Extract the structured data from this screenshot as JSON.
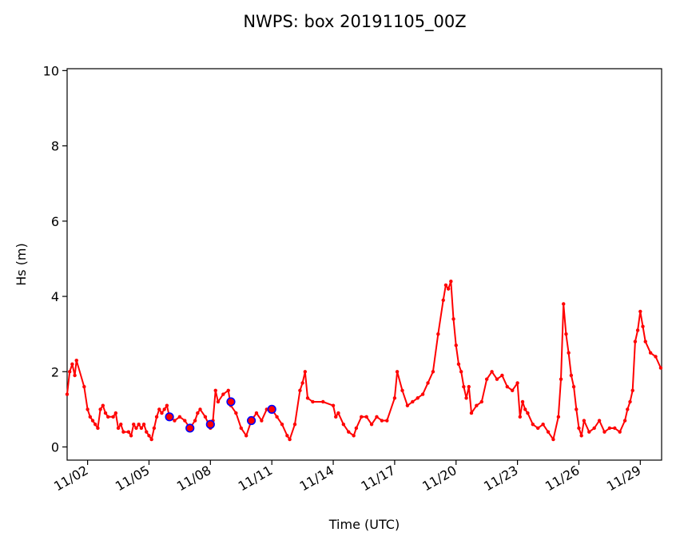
{
  "chart_data": {
    "type": "line",
    "title": "NWPS: box 20191105_00Z",
    "xlabel": "Time (UTC)",
    "ylabel": "Hs (m)",
    "xlim": [
      "2019-11-01",
      "2019-11-30T01:00"
    ],
    "ylim": [
      -0.35,
      10.05
    ],
    "x_ticks": [
      {
        "x": "2019-11-02",
        "label": "11/02"
      },
      {
        "x": "2019-11-05",
        "label": "11/05"
      },
      {
        "x": "2019-11-08",
        "label": "11/08"
      },
      {
        "x": "2019-11-11",
        "label": "11/11"
      },
      {
        "x": "2019-11-14",
        "label": "11/14"
      },
      {
        "x": "2019-11-17",
        "label": "11/17"
      },
      {
        "x": "2019-11-20",
        "label": "11/20"
      },
      {
        "x": "2019-11-23",
        "label": "11/23"
      },
      {
        "x": "2019-11-26",
        "label": "11/26"
      },
      {
        "x": "2019-11-29",
        "label": "11/29"
      }
    ],
    "y_ticks": [
      0,
      2,
      4,
      6,
      8,
      10
    ],
    "series": [
      {
        "kind": "observed",
        "color": "#ff0000",
        "points": [
          [
            "2019-11-01T00:00",
            1.4
          ],
          [
            "2019-11-01T03:00",
            2.0
          ],
          [
            "2019-11-01T06:00",
            2.2
          ],
          [
            "2019-11-01T09:00",
            1.9
          ],
          [
            "2019-11-01T11:00",
            2.3
          ],
          [
            "2019-11-01T20:00",
            1.6
          ],
          [
            "2019-11-02T00:00",
            1.0
          ],
          [
            "2019-11-02T03:00",
            0.8
          ],
          [
            "2019-11-02T06:00",
            0.7
          ],
          [
            "2019-11-02T09:00",
            0.6
          ],
          [
            "2019-11-02T12:00",
            0.5
          ],
          [
            "2019-11-02T15:00",
            1.0
          ],
          [
            "2019-11-02T18:00",
            1.1
          ],
          [
            "2019-11-02T21:00",
            0.9
          ],
          [
            "2019-11-03T00:00",
            0.8
          ],
          [
            "2019-11-03T06:00",
            0.8
          ],
          [
            "2019-11-03T09:00",
            0.9
          ],
          [
            "2019-11-03T12:00",
            0.5
          ],
          [
            "2019-11-03T15:00",
            0.6
          ],
          [
            "2019-11-03T18:00",
            0.4
          ],
          [
            "2019-11-04T00:00",
            0.4
          ],
          [
            "2019-11-04T03:00",
            0.3
          ],
          [
            "2019-11-04T06:00",
            0.6
          ],
          [
            "2019-11-04T09:00",
            0.5
          ],
          [
            "2019-11-04T12:00",
            0.6
          ],
          [
            "2019-11-04T15:00",
            0.5
          ],
          [
            "2019-11-04T18:00",
            0.6
          ],
          [
            "2019-11-04T21:00",
            0.4
          ],
          [
            "2019-11-05T00:00",
            0.3
          ],
          [
            "2019-11-05T03:00",
            0.2
          ],
          [
            "2019-11-05T06:00",
            0.5
          ],
          [
            "2019-11-05T09:00",
            0.8
          ],
          [
            "2019-11-05T12:00",
            1.0
          ],
          [
            "2019-11-05T15:00",
            0.9
          ],
          [
            "2019-11-05T18:00",
            1.0
          ],
          [
            "2019-11-05T21:00",
            1.1
          ],
          [
            "2019-11-06T00:00",
            0.8
          ],
          [
            "2019-11-06T06:00",
            0.7
          ],
          [
            "2019-11-06T12:00",
            0.8
          ],
          [
            "2019-11-06T18:00",
            0.7
          ],
          [
            "2019-11-07T00:00",
            0.5
          ],
          [
            "2019-11-07T06:00",
            0.7
          ],
          [
            "2019-11-07T09:00",
            0.9
          ],
          [
            "2019-11-07T12:00",
            1.0
          ],
          [
            "2019-11-07T18:00",
            0.8
          ],
          [
            "2019-11-08T00:00",
            0.5
          ],
          [
            "2019-11-08T03:00",
            0.7
          ],
          [
            "2019-11-08T06:00",
            1.5
          ],
          [
            "2019-11-08T09:00",
            1.2
          ],
          [
            "2019-11-08T15:00",
            1.4
          ],
          [
            "2019-11-08T21:00",
            1.5
          ],
          [
            "2019-11-09T00:00",
            1.1
          ],
          [
            "2019-11-09T06:00",
            0.9
          ],
          [
            "2019-11-09T12:00",
            0.5
          ],
          [
            "2019-11-09T18:00",
            0.3
          ],
          [
            "2019-11-10T00:00",
            0.7
          ],
          [
            "2019-11-10T06:00",
            0.9
          ],
          [
            "2019-11-10T12:00",
            0.7
          ],
          [
            "2019-11-10T18:00",
            1.0
          ],
          [
            "2019-11-11T00:00",
            1.0
          ],
          [
            "2019-11-11T06:00",
            0.8
          ],
          [
            "2019-11-11T12:00",
            0.6
          ],
          [
            "2019-11-11T18:00",
            0.3
          ],
          [
            "2019-11-11T21:00",
            0.2
          ],
          [
            "2019-11-12T03:00",
            0.6
          ],
          [
            "2019-11-12T09:00",
            1.5
          ],
          [
            "2019-11-12T12:00",
            1.7
          ],
          [
            "2019-11-12T15:00",
            2.0
          ],
          [
            "2019-11-12T18:00",
            1.3
          ],
          [
            "2019-11-13T00:00",
            1.2
          ],
          [
            "2019-11-13T12:00",
            1.2
          ],
          [
            "2019-11-14T00:00",
            1.1
          ],
          [
            "2019-11-14T03:00",
            0.8
          ],
          [
            "2019-11-14T06:00",
            0.9
          ],
          [
            "2019-11-14T12:00",
            0.6
          ],
          [
            "2019-11-14T18:00",
            0.4
          ],
          [
            "2019-11-15T00:00",
            0.3
          ],
          [
            "2019-11-15T03:00",
            0.5
          ],
          [
            "2019-11-15T09:00",
            0.8
          ],
          [
            "2019-11-15T15:00",
            0.8
          ],
          [
            "2019-11-15T21:00",
            0.6
          ],
          [
            "2019-11-16T03:00",
            0.8
          ],
          [
            "2019-11-16T09:00",
            0.7
          ],
          [
            "2019-11-16T15:00",
            0.7
          ],
          [
            "2019-11-17T00:00",
            1.3
          ],
          [
            "2019-11-17T03:00",
            2.0
          ],
          [
            "2019-11-17T09:00",
            1.5
          ],
          [
            "2019-11-17T15:00",
            1.1
          ],
          [
            "2019-11-17T21:00",
            1.2
          ],
          [
            "2019-11-18T03:00",
            1.3
          ],
          [
            "2019-11-18T09:00",
            1.4
          ],
          [
            "2019-11-18T15:00",
            1.7
          ],
          [
            "2019-11-18T21:00",
            2.0
          ],
          [
            "2019-11-19T03:00",
            3.0
          ],
          [
            "2019-11-19T09:00",
            3.9
          ],
          [
            "2019-11-19T12:00",
            4.3
          ],
          [
            "2019-11-19T15:00",
            4.2
          ],
          [
            "2019-11-19T18:00",
            4.4
          ],
          [
            "2019-11-19T21:00",
            3.4
          ],
          [
            "2019-11-20T00:00",
            2.7
          ],
          [
            "2019-11-20T03:00",
            2.2
          ],
          [
            "2019-11-20T06:00",
            2.0
          ],
          [
            "2019-11-20T09:00",
            1.6
          ],
          [
            "2019-11-20T12:00",
            1.3
          ],
          [
            "2019-11-20T15:00",
            1.6
          ],
          [
            "2019-11-20T18:00",
            0.9
          ],
          [
            "2019-11-21T00:00",
            1.1
          ],
          [
            "2019-11-21T06:00",
            1.2
          ],
          [
            "2019-11-21T12:00",
            1.8
          ],
          [
            "2019-11-21T18:00",
            2.0
          ],
          [
            "2019-11-22T00:00",
            1.8
          ],
          [
            "2019-11-22T06:00",
            1.9
          ],
          [
            "2019-11-22T12:00",
            1.6
          ],
          [
            "2019-11-22T18:00",
            1.5
          ],
          [
            "2019-11-23T00:00",
            1.7
          ],
          [
            "2019-11-23T03:00",
            0.8
          ],
          [
            "2019-11-23T06:00",
            1.2
          ],
          [
            "2019-11-23T09:00",
            1.0
          ],
          [
            "2019-11-23T12:00",
            0.9
          ],
          [
            "2019-11-23T18:00",
            0.6
          ],
          [
            "2019-11-24T00:00",
            0.5
          ],
          [
            "2019-11-24T06:00",
            0.6
          ],
          [
            "2019-11-24T12:00",
            0.4
          ],
          [
            "2019-11-24T18:00",
            0.2
          ],
          [
            "2019-11-25T00:00",
            0.8
          ],
          [
            "2019-11-25T03:00",
            1.8
          ],
          [
            "2019-11-25T06:00",
            3.8
          ],
          [
            "2019-11-25T09:00",
            3.0
          ],
          [
            "2019-11-25T12:00",
            2.5
          ],
          [
            "2019-11-25T15:00",
            1.9
          ],
          [
            "2019-11-25T18:00",
            1.6
          ],
          [
            "2019-11-25T21:00",
            1.0
          ],
          [
            "2019-11-26T00:00",
            0.5
          ],
          [
            "2019-11-26T03:00",
            0.3
          ],
          [
            "2019-11-26T06:00",
            0.7
          ],
          [
            "2019-11-26T12:00",
            0.4
          ],
          [
            "2019-11-26T18:00",
            0.5
          ],
          [
            "2019-11-27T00:00",
            0.7
          ],
          [
            "2019-11-27T06:00",
            0.4
          ],
          [
            "2019-11-27T12:00",
            0.5
          ],
          [
            "2019-11-27T18:00",
            0.5
          ],
          [
            "2019-11-28T00:00",
            0.4
          ],
          [
            "2019-11-28T06:00",
            0.7
          ],
          [
            "2019-11-28T09:00",
            1.0
          ],
          [
            "2019-11-28T12:00",
            1.2
          ],
          [
            "2019-11-28T15:00",
            1.5
          ],
          [
            "2019-11-28T18:00",
            2.8
          ],
          [
            "2019-11-28T21:00",
            3.1
          ],
          [
            "2019-11-29T00:00",
            3.6
          ],
          [
            "2019-11-29T03:00",
            3.2
          ],
          [
            "2019-11-29T06:00",
            2.8
          ],
          [
            "2019-11-29T12:00",
            2.5
          ],
          [
            "2019-11-29T18:00",
            2.4
          ],
          [
            "2019-11-30T00:00",
            2.1
          ]
        ]
      },
      {
        "kind": "markers",
        "color": "#0000ff",
        "points": [
          [
            "2019-11-06T00:00",
            0.8
          ],
          [
            "2019-11-07T00:00",
            0.5
          ],
          [
            "2019-11-08T00:00",
            0.6
          ],
          [
            "2019-11-09T00:00",
            1.2
          ],
          [
            "2019-11-10T00:00",
            0.7
          ],
          [
            "2019-11-11T00:00",
            1.0
          ]
        ]
      }
    ]
  }
}
